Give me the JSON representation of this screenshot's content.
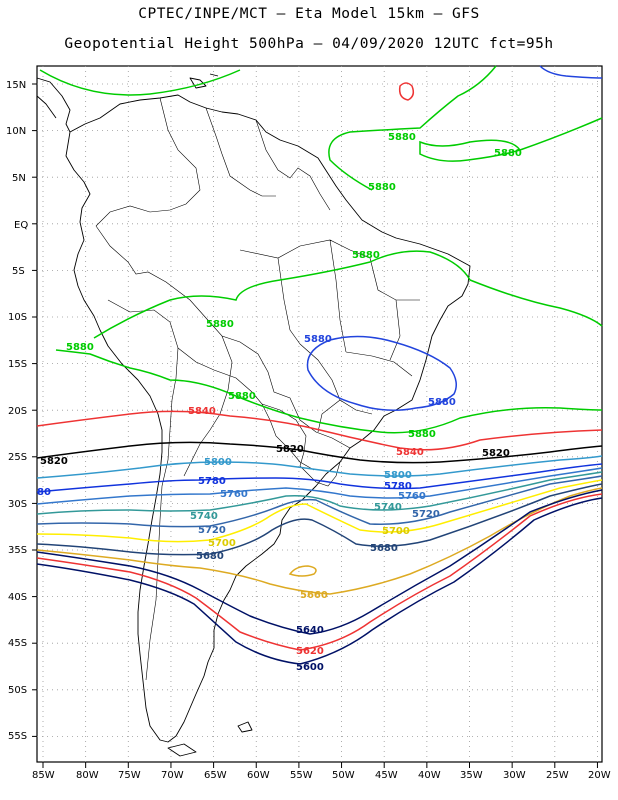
{
  "header": {
    "line1": "CPTEC/INPE/MCT –  Eta Model 15km – GFS",
    "line2": "Geopotential Height 500hPa – 04/09/2020 12UTC fct=95h"
  },
  "axes": {
    "lat_labels": [
      "15N",
      "10N",
      "5N",
      "EQ",
      "5S",
      "10S",
      "15S",
      "20S",
      "25S",
      "30S",
      "35S",
      "40S",
      "45S",
      "50S",
      "55S"
    ],
    "lon_labels": [
      "85W",
      "80W",
      "75W",
      "70W",
      "65W",
      "60W",
      "55W",
      "50W",
      "45W",
      "40W",
      "35W",
      "30W",
      "25W",
      "20W"
    ]
  },
  "colors": {
    "c5880": "#00cc00",
    "c5860": "#ee3333",
    "c5840": "#000033",
    "c5820": "#000000",
    "c5800": "#3399cc",
    "c5780": "#1133dd",
    "c5760": "#3377cc",
    "c5740": "#339999",
    "c5720": "#3366aa",
    "c5700": "#ffee00",
    "c5680": "#224477",
    "c5660": "#ddaa22",
    "c5620": "#ee3333",
    "c5600": "#001166",
    "c5900": "#2244dd"
  },
  "contour_labels": {
    "l5880_a": "5880",
    "l5880_b": "5880",
    "l5880_c": "5880",
    "l5880_d": "5880",
    "l5880_e": "5880",
    "l5880_f": "5880",
    "l5880_g": "5880",
    "l5880_h": "5880",
    "l5900_a": "5880",
    "l5900_b": "5880",
    "l5860_a": "5840",
    "l5860_b": "5840",
    "l5820_a": "5820",
    "l5820_b": "5820",
    "l5820_c": "5820",
    "l5800_a": "5800",
    "l5800_b": "5800",
    "l5780_a": "80",
    "l5780_b": "5780",
    "l5780_c": "5780",
    "l5760_a": "5760",
    "l5760_b": "5760",
    "l5740_a": "5740",
    "l5740_b": "5740",
    "l5720_a": "5720",
    "l5720_b": "5720",
    "l5700_a": "5700",
    "l5700_b": "5700",
    "l5680_a": "5680",
    "l5680_b": "5680",
    "l5660": "5660",
    "l5640": "5640",
    "l5620": "5620",
    "l5600": "5600"
  }
}
